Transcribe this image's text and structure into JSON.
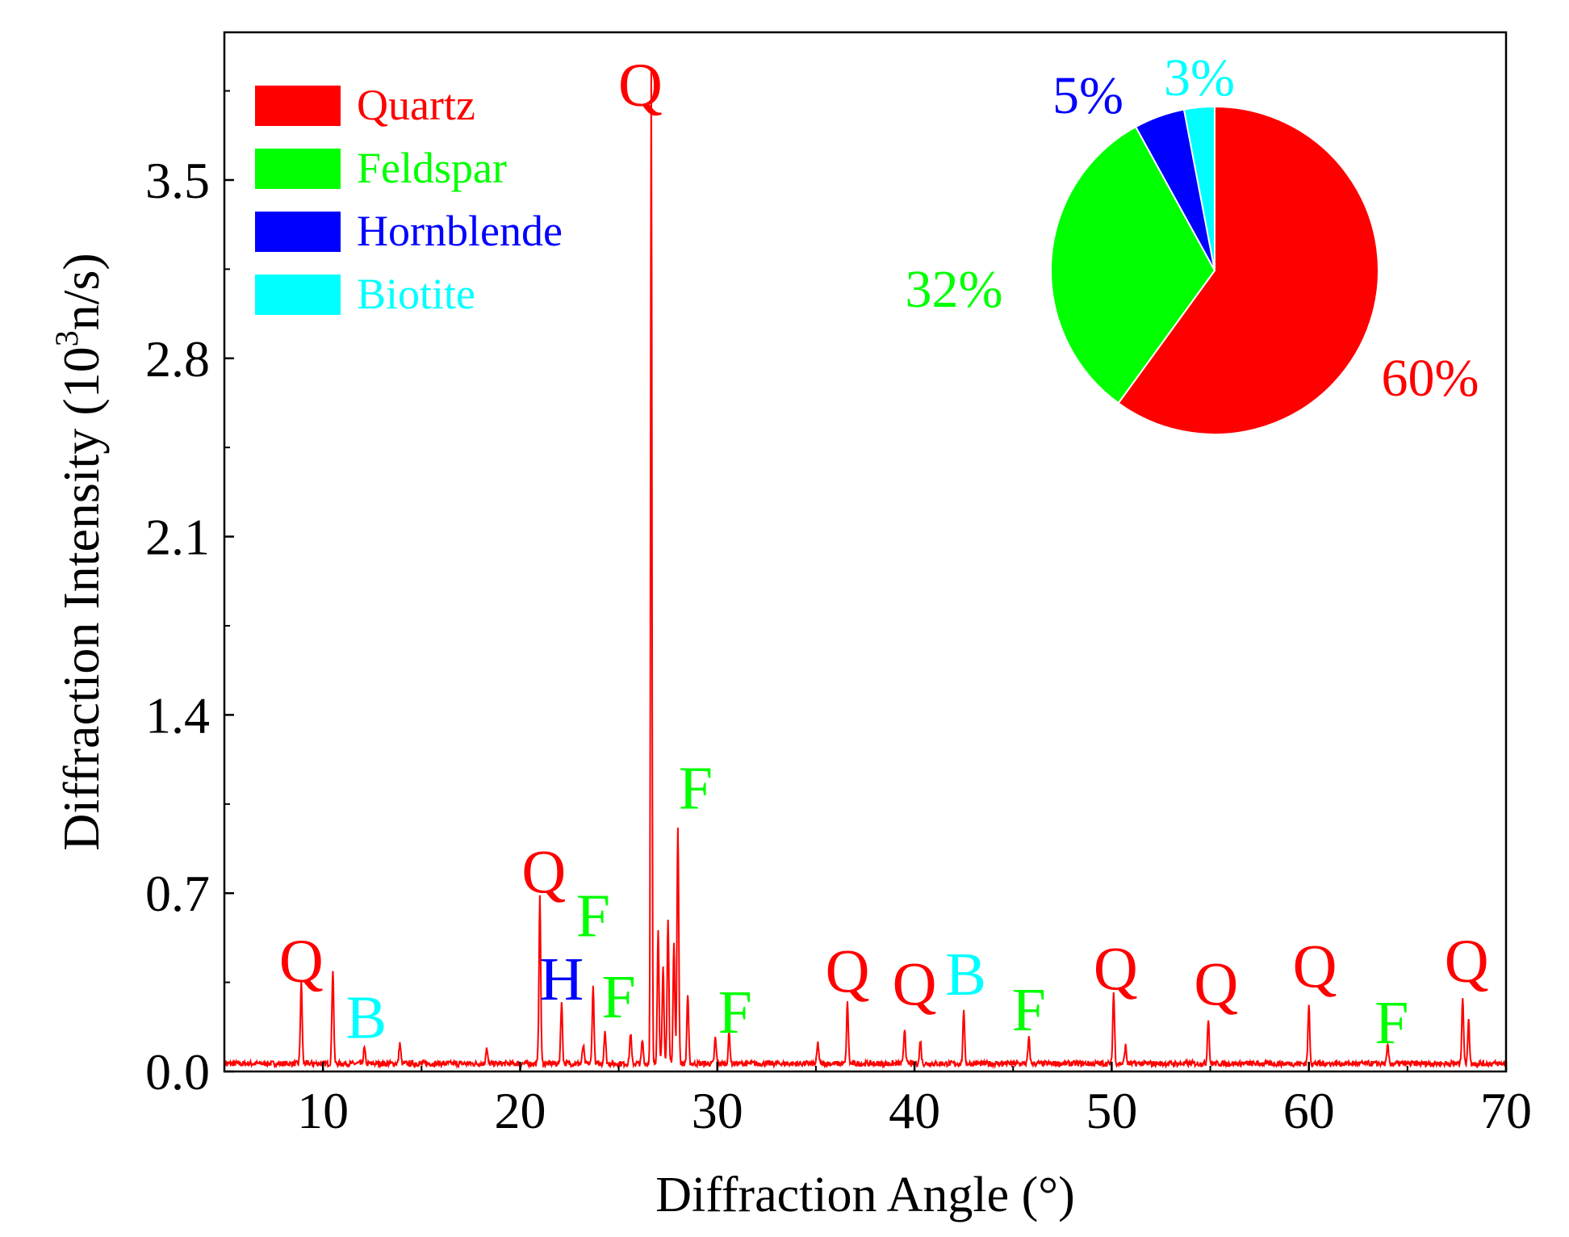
{
  "chart_data": [
    {
      "type": "line",
      "xlabel": "Diffraction Angle (°)",
      "ylabel": "Diffraction Intensity (10",
      "ylabel_sup": "3",
      "ylabel_suffix": "n/s)",
      "xlim": [
        5,
        70
      ],
      "ylim": [
        0,
        4.08
      ],
      "x_ticks": [
        10,
        20,
        30,
        40,
        50,
        60,
        70
      ],
      "x_tick_labels": [
        "10",
        "20",
        "30",
        "40",
        "50",
        "60",
        "70"
      ],
      "y_ticks": [
        0.0,
        0.7,
        1.4,
        2.1,
        2.8,
        3.5
      ],
      "y_tick_labels": [
        "0.0",
        "0.7",
        "1.4",
        "2.1",
        "2.8",
        "3.5"
      ],
      "grid": false,
      "line_color": "#ff0000",
      "baseline": 0.02,
      "peaks": [
        {
          "x": 8.9,
          "y": 0.32
        },
        {
          "x": 10.5,
          "y": 0.37
        },
        {
          "x": 12.1,
          "y": 0.06
        },
        {
          "x": 13.9,
          "y": 0.08
        },
        {
          "x": 18.3,
          "y": 0.06
        },
        {
          "x": 21.0,
          "y": 0.65
        },
        {
          "x": 22.1,
          "y": 0.24
        },
        {
          "x": 23.2,
          "y": 0.07
        },
        {
          "x": 23.7,
          "y": 0.3
        },
        {
          "x": 24.3,
          "y": 0.13
        },
        {
          "x": 25.6,
          "y": 0.12
        },
        {
          "x": 26.2,
          "y": 0.09
        },
        {
          "x": 26.65,
          "y": 3.9
        },
        {
          "x": 27.0,
          "y": 0.52
        },
        {
          "x": 27.25,
          "y": 0.38
        },
        {
          "x": 27.5,
          "y": 0.56
        },
        {
          "x": 27.8,
          "y": 0.47
        },
        {
          "x": 28.0,
          "y": 0.93
        },
        {
          "x": 28.5,
          "y": 0.27
        },
        {
          "x": 29.9,
          "y": 0.1
        },
        {
          "x": 30.6,
          "y": 0.12
        },
        {
          "x": 35.1,
          "y": 0.08
        },
        {
          "x": 36.6,
          "y": 0.24
        },
        {
          "x": 39.5,
          "y": 0.14
        },
        {
          "x": 40.3,
          "y": 0.09
        },
        {
          "x": 42.5,
          "y": 0.2
        },
        {
          "x": 45.8,
          "y": 0.1
        },
        {
          "x": 50.1,
          "y": 0.28
        },
        {
          "x": 50.7,
          "y": 0.07
        },
        {
          "x": 54.9,
          "y": 0.18
        },
        {
          "x": 60.0,
          "y": 0.23
        },
        {
          "x": 64.0,
          "y": 0.07
        },
        {
          "x": 67.8,
          "y": 0.26
        },
        {
          "x": 68.1,
          "y": 0.17
        }
      ],
      "annotations": [
        {
          "text": "Q",
          "x": 8.9,
          "y": 0.32,
          "color": "#ff0000"
        },
        {
          "text": "B",
          "x": 12.2,
          "y": 0.1,
          "color": "#00ffff"
        },
        {
          "text": "Q",
          "x": 21.2,
          "y": 0.67,
          "color": "#ff0000"
        },
        {
          "text": "H",
          "x": 22.1,
          "y": 0.25,
          "color": "#0000ff"
        },
        {
          "text": "F",
          "x": 23.7,
          "y": 0.5,
          "color": "#00ff00"
        },
        {
          "text": "F",
          "x": 25.0,
          "y": 0.18,
          "color": "#00ff00"
        },
        {
          "text": "Q",
          "x": 26.1,
          "y": 3.76,
          "color": "#ff0000"
        },
        {
          "text": "F",
          "x": 28.9,
          "y": 1.0,
          "color": "#00ff00"
        },
        {
          "text": "F",
          "x": 30.9,
          "y": 0.12,
          "color": "#00ff00"
        },
        {
          "text": "Q",
          "x": 36.6,
          "y": 0.28,
          "color": "#ff0000"
        },
        {
          "text": "Q",
          "x": 40.0,
          "y": 0.23,
          "color": "#ff0000"
        },
        {
          "text": "B",
          "x": 42.6,
          "y": 0.27,
          "color": "#00ffff"
        },
        {
          "text": "F",
          "x": 45.8,
          "y": 0.13,
          "color": "#00ff00"
        },
        {
          "text": "Q",
          "x": 50.2,
          "y": 0.29,
          "color": "#ff0000"
        },
        {
          "text": "Q",
          "x": 55.3,
          "y": 0.23,
          "color": "#ff0000"
        },
        {
          "text": "Q",
          "x": 60.3,
          "y": 0.3,
          "color": "#ff0000"
        },
        {
          "text": "F",
          "x": 64.2,
          "y": 0.08,
          "color": "#00ff00"
        },
        {
          "text": "Q",
          "x": 68.0,
          "y": 0.32,
          "color": "#ff0000"
        }
      ],
      "legend": {
        "placement": "top-left",
        "entries": [
          {
            "name": "Quartz",
            "color": "#ff0000"
          },
          {
            "name": "Feldspar",
            "color": "#00ff00"
          },
          {
            "name": "Hornblende",
            "color": "#0000ff"
          },
          {
            "name": "Biotite",
            "color": "#00ffff"
          }
        ]
      }
    },
    {
      "type": "pie",
      "placement": "top-right inset",
      "slices": [
        {
          "name": "Quartz",
          "value": 60,
          "label": "60%",
          "color": "#ff0000"
        },
        {
          "name": "Feldspar",
          "value": 32,
          "label": "32%",
          "color": "#00ff00"
        },
        {
          "name": "Hornblende",
          "value": 5,
          "label": "5%",
          "color": "#0000ff"
        },
        {
          "name": "Biotite",
          "value": 3,
          "label": "3%",
          "color": "#00ffff"
        }
      ]
    }
  ]
}
